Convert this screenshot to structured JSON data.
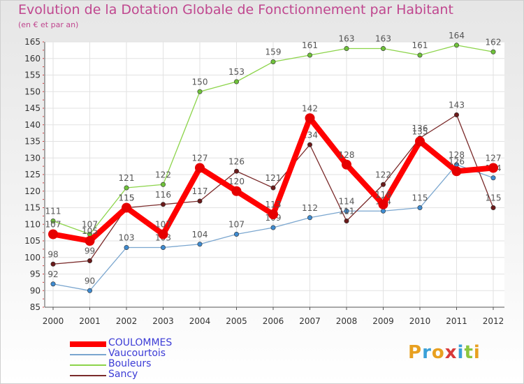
{
  "chart_data": {
    "type": "line",
    "title": "Evolution de la Dotation Globale de Fonctionnement par Habitant",
    "subtitle": "(en € et par an)",
    "xlabel": "",
    "ylabel": "",
    "ylim": [
      85,
      165
    ],
    "yticks": [
      85,
      90,
      95,
      100,
      105,
      110,
      115,
      120,
      125,
      130,
      135,
      140,
      145,
      150,
      155,
      160,
      165
    ],
    "categories": [
      "2000",
      "2001",
      "2002",
      "2003",
      "2004",
      "2005",
      "2006",
      "2007",
      "2008",
      "2009",
      "2010",
      "2011",
      "2012"
    ],
    "grid": true,
    "legend_position": "bottom-left",
    "series": [
      {
        "name": "Bouleurs",
        "color": "#8cd44a",
        "marker_color": "#6fc23a",
        "values": [
          111,
          107,
          121,
          122,
          150,
          153,
          159,
          161,
          163,
          163,
          161,
          164,
          162
        ]
      },
      {
        "name": "Vaucourtois",
        "color": "#7aa6cf",
        "marker_color": "#3f8bd0",
        "values": [
          92,
          90,
          103,
          103,
          104,
          107,
          109,
          112,
          114,
          114,
          115,
          128,
          124
        ]
      },
      {
        "name": "Sancy",
        "color": "#7a2a2a",
        "marker_color": "#6b1a1a",
        "values": [
          98,
          99,
          115,
          116,
          117,
          126,
          121,
          134,
          111,
          122,
          136,
          143,
          115
        ]
      },
      {
        "name": "COULOMMES",
        "color": "#ff0000",
        "marker_color": "#e60000",
        "values": [
          107,
          105,
          115,
          107,
          127,
          120,
          113,
          142,
          128,
          116,
          135,
          126,
          127
        ]
      }
    ],
    "legend": [
      {
        "name": "COULOMMES",
        "color": "#ff0000",
        "text_color": "#3b3bd6"
      },
      {
        "name": "Vaucourtois",
        "color": "#7aa6cf",
        "text_color": "#3b3bd6"
      },
      {
        "name": "Bouleurs",
        "color": "#8cd44a",
        "text_color": "#3b3bd6"
      },
      {
        "name": "Sancy",
        "color": "#7a2a2a",
        "text_color": "#3b3bd6"
      }
    ]
  },
  "logo": {
    "text": "Proxiti",
    "letters": [
      "P",
      "r",
      "o",
      "x",
      "i",
      "t",
      "i"
    ],
    "colors": [
      "#e8a020",
      "#3aa0d8",
      "#e8a020",
      "#d83a3a",
      "#3aa0d8",
      "#8cc63f",
      "#e8a020"
    ]
  }
}
